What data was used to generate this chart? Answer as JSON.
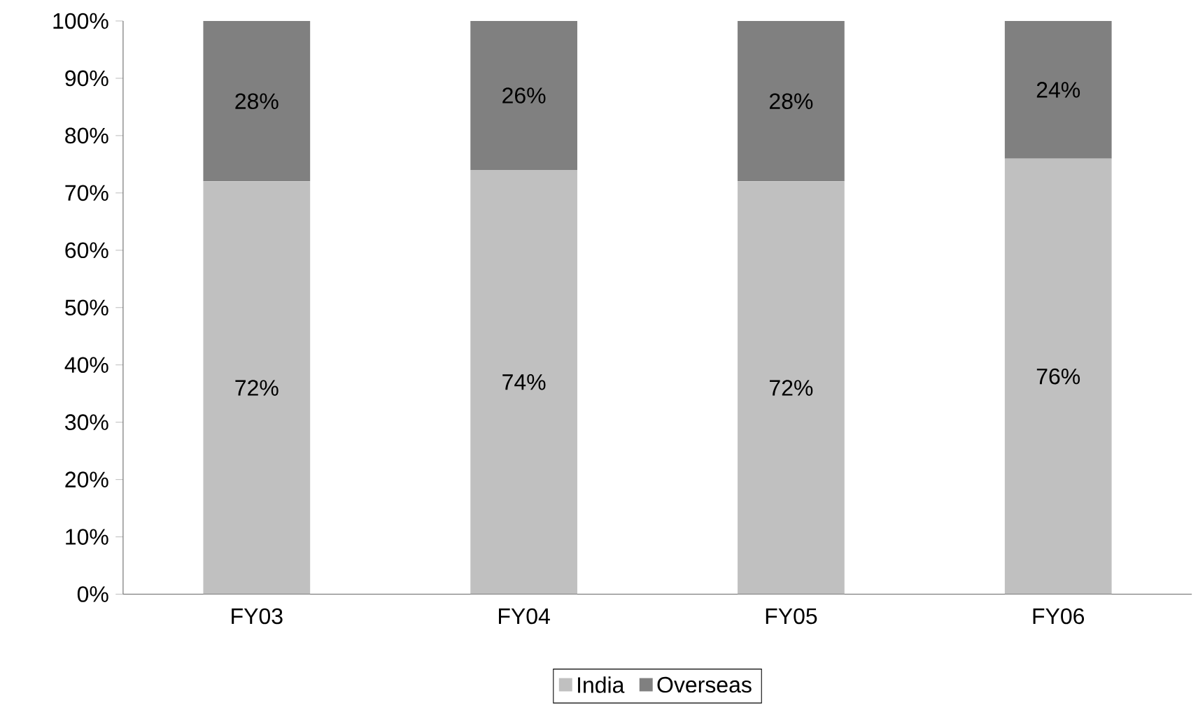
{
  "chart_data": {
    "type": "bar",
    "stacked": true,
    "categories": [
      "FY03",
      "FY04",
      "FY05",
      "FY06"
    ],
    "series": [
      {
        "name": "India",
        "color": "#c0c0c0",
        "values": [
          72,
          74,
          72,
          76
        ],
        "value_labels": [
          "72%",
          "74%",
          "72%",
          "76%"
        ]
      },
      {
        "name": "Overseas",
        "color": "#808080",
        "values": [
          28,
          26,
          28,
          24
        ],
        "value_labels": [
          "28%",
          "26%",
          "28%",
          "24%"
        ]
      }
    ],
    "ylim": [
      0,
      100
    ],
    "yticks": [
      {
        "value": 0,
        "label": "0%"
      },
      {
        "value": 10,
        "label": "10%"
      },
      {
        "value": 20,
        "label": "20%"
      },
      {
        "value": 30,
        "label": "30%"
      },
      {
        "value": 40,
        "label": "40%"
      },
      {
        "value": 50,
        "label": "50%"
      },
      {
        "value": 60,
        "label": "60%"
      },
      {
        "value": 70,
        "label": "70%"
      },
      {
        "value": 80,
        "label": "80%"
      },
      {
        "value": 90,
        "label": "90%"
      },
      {
        "value": 100,
        "label": "100%"
      }
    ],
    "legend": "bottom",
    "grid": false
  }
}
